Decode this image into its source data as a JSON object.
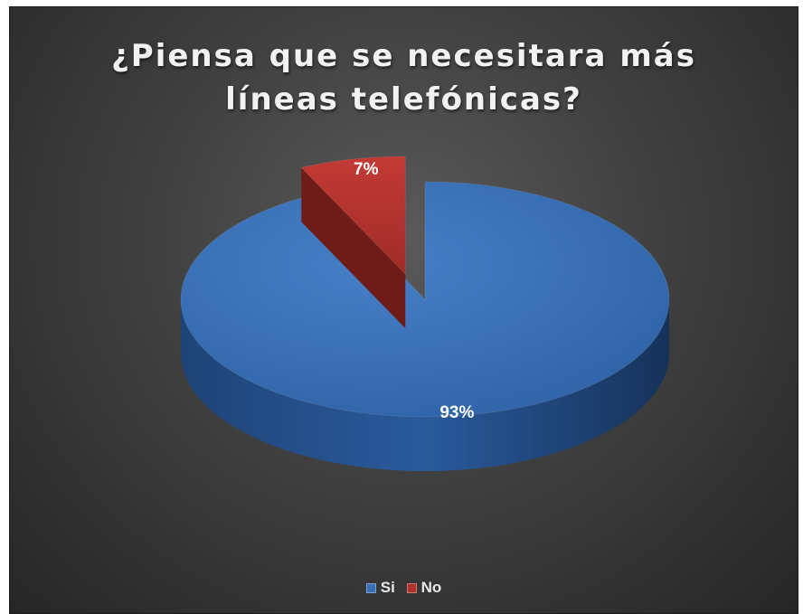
{
  "chart_data": {
    "type": "pie",
    "title": "¿Piensa que se necesitara más\nlíneas telefónicas?",
    "categories": [
      "Si",
      "No"
    ],
    "values": [
      93,
      7
    ],
    "data_labels": [
      "93%",
      "7%"
    ],
    "colors": [
      "#3a6fb5",
      "#b0302c"
    ],
    "legend_position": "bottom",
    "style": "3d-exploded"
  }
}
